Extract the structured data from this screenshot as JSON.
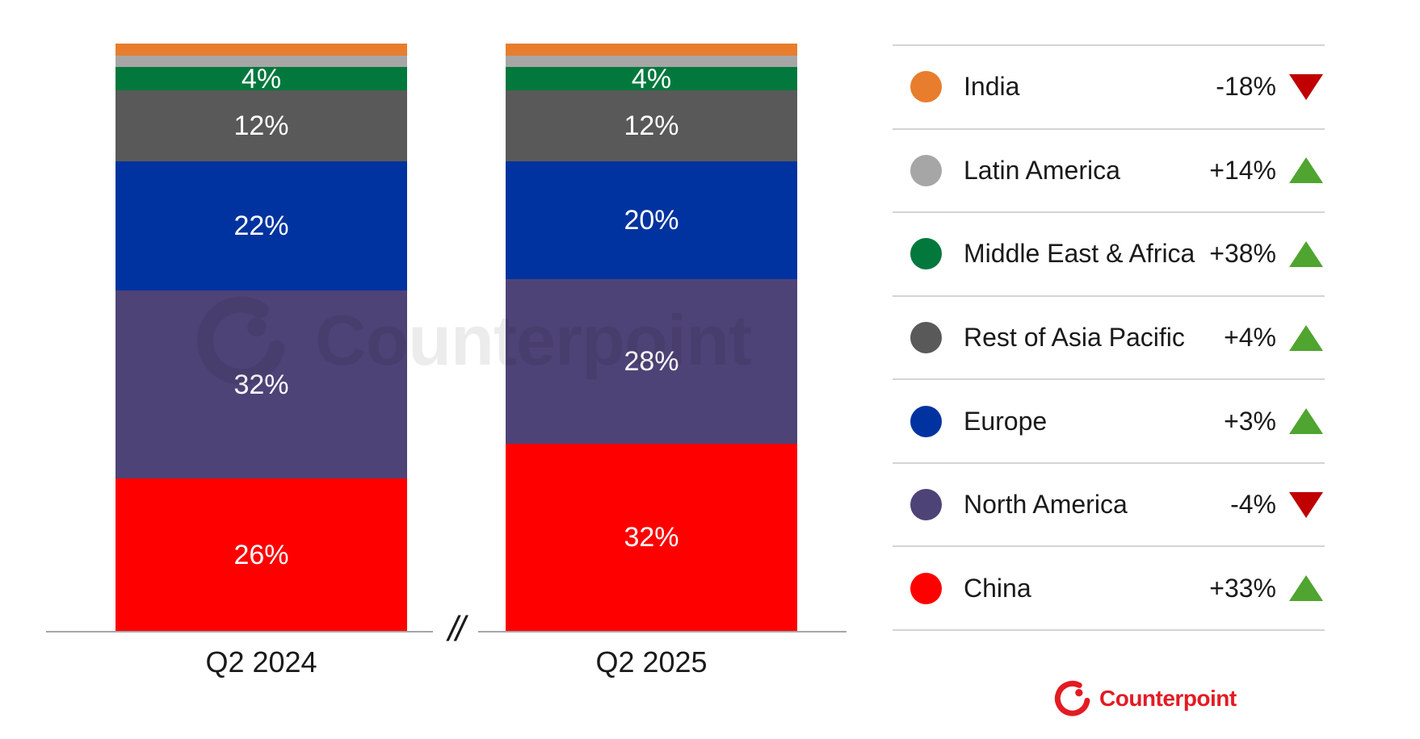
{
  "chart_data": {
    "type": "bar",
    "subtype": "stacked-100-percent-column",
    "categories": [
      "Q2 2024",
      "Q2 2025"
    ],
    "unit": "%",
    "ylim": [
      0,
      100
    ],
    "grid": false,
    "legend_position": "right",
    "axis_break_symbol": "//",
    "stack_order": "first series at top of bar",
    "series": [
      {
        "name": "India",
        "color": "#e87d2d",
        "values": [
          2,
          2
        ],
        "labels_visible": [
          false,
          false
        ],
        "change": "-18%",
        "direction": "down"
      },
      {
        "name": "Latin America",
        "color": "#a6a6a6",
        "values": [
          2,
          2
        ],
        "labels_visible": [
          false,
          false
        ],
        "change": "+14%",
        "direction": "up"
      },
      {
        "name": "Middle East & Africa",
        "color": "#03783d",
        "values": [
          4,
          4
        ],
        "labels_visible": [
          true,
          true
        ],
        "change": "+38%",
        "direction": "up"
      },
      {
        "name": "Rest of Asia Pacific",
        "color": "#595959",
        "values": [
          12,
          12
        ],
        "labels_visible": [
          true,
          true
        ],
        "change": "+4%",
        "direction": "up"
      },
      {
        "name": "Europe",
        "color": "#0133a0",
        "values": [
          22,
          20
        ],
        "labels_visible": [
          true,
          true
        ],
        "change": "+3%",
        "direction": "up"
      },
      {
        "name": "North America",
        "color": "#4e4377",
        "values": [
          32,
          28
        ],
        "labels_visible": [
          true,
          true
        ],
        "change": "-4%",
        "direction": "down"
      },
      {
        "name": "China",
        "color": "#ff0000",
        "values": [
          26,
          32
        ],
        "labels_visible": [
          true,
          true
        ],
        "change": "+33%",
        "direction": "up"
      }
    ]
  },
  "legend": {
    "up_triangle_color": "#4fa52f",
    "down_triangle_color": "#c00000"
  },
  "branding": {
    "watermark_text": "Counterpoint",
    "logo_text": "Counterpoint",
    "logo_color": "#e31b23"
  }
}
